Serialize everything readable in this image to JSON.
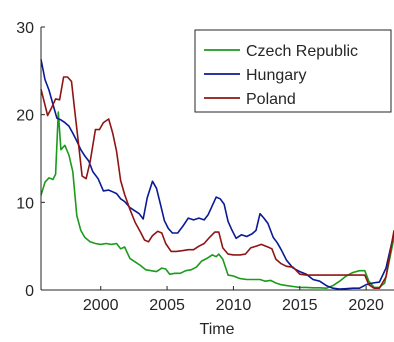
{
  "chart_data": {
    "type": "line",
    "title": "",
    "xlabel": "Time",
    "ylabel": "",
    "xlim": [
      1995.5,
      2022.1
    ],
    "ylim": [
      0,
      30
    ],
    "xticks": [
      2000,
      2005,
      2010,
      2015,
      2020
    ],
    "yticks": [
      0,
      10,
      20,
      30
    ],
    "grid": false,
    "legend_position": "top-right",
    "series": [
      {
        "name": "Czech Republic",
        "color": "#1c9a1c",
        "points": [
          [
            1995.5,
            10.8
          ],
          [
            1995.8,
            12.3
          ],
          [
            1996.1,
            12.8
          ],
          [
            1996.4,
            12.6
          ],
          [
            1996.6,
            13.2
          ],
          [
            1996.8,
            20.3
          ],
          [
            1997.0,
            16.0
          ],
          [
            1997.3,
            16.5
          ],
          [
            1997.6,
            15.4
          ],
          [
            1997.9,
            13.5
          ],
          [
            1998.2,
            8.5
          ],
          [
            1998.5,
            6.8
          ],
          [
            1998.8,
            6.0
          ],
          [
            1999.2,
            5.5
          ],
          [
            1999.6,
            5.3
          ],
          [
            2000.0,
            5.2
          ],
          [
            2000.4,
            5.3
          ],
          [
            2000.8,
            5.2
          ],
          [
            2001.2,
            5.3
          ],
          [
            2001.5,
            4.7
          ],
          [
            2001.8,
            4.9
          ],
          [
            2002.2,
            3.6
          ],
          [
            2002.6,
            3.2
          ],
          [
            2003.0,
            2.8
          ],
          [
            2003.4,
            2.3
          ],
          [
            2003.8,
            2.2
          ],
          [
            2004.2,
            2.1
          ],
          [
            2004.6,
            2.5
          ],
          [
            2004.9,
            2.4
          ],
          [
            2005.2,
            1.8
          ],
          [
            2005.6,
            1.9
          ],
          [
            2006.0,
            1.9
          ],
          [
            2006.4,
            2.2
          ],
          [
            2006.8,
            2.3
          ],
          [
            2007.2,
            2.6
          ],
          [
            2007.6,
            3.3
          ],
          [
            2008.0,
            3.6
          ],
          [
            2008.4,
            4.0
          ],
          [
            2008.7,
            3.8
          ],
          [
            2008.9,
            4.1
          ],
          [
            2009.2,
            3.5
          ],
          [
            2009.4,
            2.6
          ],
          [
            2009.6,
            1.7
          ],
          [
            2010.0,
            1.6
          ],
          [
            2010.5,
            1.3
          ],
          [
            2011.0,
            1.2
          ],
          [
            2011.5,
            1.2
          ],
          [
            2012.0,
            1.2
          ],
          [
            2012.4,
            1.0
          ],
          [
            2012.8,
            1.1
          ],
          [
            2013.2,
            0.8
          ],
          [
            2013.6,
            0.6
          ],
          [
            2014.0,
            0.5
          ],
          [
            2014.5,
            0.4
          ],
          [
            2015.0,
            0.3
          ],
          [
            2015.5,
            0.3
          ],
          [
            2016.0,
            0.25
          ],
          [
            2016.5,
            0.25
          ],
          [
            2017.0,
            0.2
          ],
          [
            2017.5,
            0.5
          ],
          [
            2018.0,
            1.0
          ],
          [
            2018.5,
            1.6
          ],
          [
            2019.0,
            2.0
          ],
          [
            2019.5,
            2.2
          ],
          [
            2019.9,
            2.2
          ],
          [
            2020.2,
            1.0
          ],
          [
            2020.6,
            0.3
          ],
          [
            2021.0,
            0.3
          ],
          [
            2021.4,
            0.8
          ],
          [
            2021.7,
            3.0
          ],
          [
            2022.1,
            6.0
          ]
        ]
      },
      {
        "name": "Hungary",
        "color": "#0a1a94",
        "points": [
          [
            1995.5,
            26.3
          ],
          [
            1995.8,
            24.0
          ],
          [
            1996.1,
            22.8
          ],
          [
            1996.4,
            21.2
          ],
          [
            1996.7,
            19.6
          ],
          [
            1997.0,
            19.4
          ],
          [
            1997.3,
            19.1
          ],
          [
            1997.6,
            18.7
          ],
          [
            1997.9,
            17.9
          ],
          [
            1998.2,
            17.0
          ],
          [
            1998.5,
            16.0
          ],
          [
            1998.8,
            15.3
          ],
          [
            1999.1,
            14.7
          ],
          [
            1999.4,
            13.5
          ],
          [
            1999.8,
            12.7
          ],
          [
            2000.2,
            11.3
          ],
          [
            2000.6,
            11.4
          ],
          [
            2000.9,
            11.2
          ],
          [
            2001.2,
            11.0
          ],
          [
            2001.5,
            10.4
          ],
          [
            2001.8,
            10.1
          ],
          [
            2002.2,
            9.4
          ],
          [
            2002.6,
            9.0
          ],
          [
            2002.9,
            8.7
          ],
          [
            2003.2,
            8.1
          ],
          [
            2003.5,
            10.5
          ],
          [
            2003.9,
            12.4
          ],
          [
            2004.2,
            11.6
          ],
          [
            2004.5,
            9.8
          ],
          [
            2004.8,
            7.9
          ],
          [
            2005.1,
            7.0
          ],
          [
            2005.4,
            6.5
          ],
          [
            2005.8,
            6.5
          ],
          [
            2006.2,
            7.3
          ],
          [
            2006.6,
            8.2
          ],
          [
            2007.0,
            8.0
          ],
          [
            2007.4,
            8.2
          ],
          [
            2007.8,
            8.0
          ],
          [
            2008.1,
            8.6
          ],
          [
            2008.4,
            9.6
          ],
          [
            2008.7,
            10.6
          ],
          [
            2009.0,
            10.4
          ],
          [
            2009.3,
            9.8
          ],
          [
            2009.6,
            7.8
          ],
          [
            2009.9,
            6.8
          ],
          [
            2010.2,
            5.9
          ],
          [
            2010.6,
            6.3
          ],
          [
            2011.0,
            6.1
          ],
          [
            2011.4,
            6.4
          ],
          [
            2011.7,
            6.8
          ],
          [
            2012.0,
            8.7
          ],
          [
            2012.3,
            8.2
          ],
          [
            2012.6,
            7.6
          ],
          [
            2013.0,
            6.0
          ],
          [
            2013.3,
            5.4
          ],
          [
            2013.6,
            4.6
          ],
          [
            2014.0,
            3.4
          ],
          [
            2014.5,
            2.5
          ],
          [
            2015.0,
            2.1
          ],
          [
            2015.5,
            1.8
          ],
          [
            2016.0,
            1.2
          ],
          [
            2016.5,
            1.0
          ],
          [
            2017.0,
            0.5
          ],
          [
            2017.5,
            0.2
          ],
          [
            2018.0,
            0.1
          ],
          [
            2018.5,
            0.15
          ],
          [
            2019.0,
            0.2
          ],
          [
            2019.5,
            0.2
          ],
          [
            2020.0,
            0.6
          ],
          [
            2020.5,
            0.8
          ],
          [
            2021.0,
            0.9
          ],
          [
            2021.5,
            2.5
          ],
          [
            2022.1,
            6.5
          ]
        ]
      },
      {
        "name": "Poland",
        "color": "#8f1515",
        "points": [
          [
            1995.5,
            22.9
          ],
          [
            1995.7,
            21.7
          ],
          [
            1996.0,
            19.9
          ],
          [
            1996.3,
            20.8
          ],
          [
            1996.6,
            21.8
          ],
          [
            1996.9,
            21.7
          ],
          [
            1997.2,
            24.3
          ],
          [
            1997.5,
            24.3
          ],
          [
            1997.8,
            23.8
          ],
          [
            1998.0,
            21.0
          ],
          [
            1998.3,
            17.0
          ],
          [
            1998.6,
            13.0
          ],
          [
            1998.9,
            12.7
          ],
          [
            1999.2,
            14.6
          ],
          [
            1999.6,
            18.3
          ],
          [
            1999.9,
            18.3
          ],
          [
            2000.2,
            19.1
          ],
          [
            2000.6,
            19.5
          ],
          [
            2000.9,
            17.9
          ],
          [
            2001.2,
            15.8
          ],
          [
            2001.5,
            12.5
          ],
          [
            2001.8,
            10.9
          ],
          [
            2002.2,
            9.2
          ],
          [
            2002.6,
            7.7
          ],
          [
            2003.0,
            6.6
          ],
          [
            2003.3,
            5.7
          ],
          [
            2003.6,
            5.5
          ],
          [
            2003.9,
            6.2
          ],
          [
            2004.3,
            6.7
          ],
          [
            2004.6,
            6.5
          ],
          [
            2004.9,
            5.3
          ],
          [
            2005.3,
            4.4
          ],
          [
            2005.7,
            4.4
          ],
          [
            2006.2,
            4.5
          ],
          [
            2006.6,
            4.6
          ],
          [
            2007.0,
            4.6
          ],
          [
            2007.4,
            5.0
          ],
          [
            2007.8,
            5.3
          ],
          [
            2008.2,
            6.0
          ],
          [
            2008.6,
            6.6
          ],
          [
            2008.9,
            6.6
          ],
          [
            2009.2,
            4.8
          ],
          [
            2009.6,
            4.1
          ],
          [
            2010.0,
            4.0
          ],
          [
            2010.5,
            4.0
          ],
          [
            2010.9,
            4.1
          ],
          [
            2011.3,
            4.8
          ],
          [
            2011.7,
            5.0
          ],
          [
            2012.1,
            5.2
          ],
          [
            2012.6,
            4.9
          ],
          [
            2012.9,
            4.7
          ],
          [
            2013.2,
            3.5
          ],
          [
            2013.6,
            3.0
          ],
          [
            2014.0,
            2.7
          ],
          [
            2014.5,
            2.6
          ],
          [
            2015.0,
            1.8
          ],
          [
            2015.5,
            1.7
          ],
          [
            2016.0,
            1.7
          ],
          [
            2016.5,
            1.7
          ],
          [
            2017.0,
            1.7
          ],
          [
            2017.5,
            1.7
          ],
          [
            2018.0,
            1.7
          ],
          [
            2018.5,
            1.7
          ],
          [
            2019.0,
            1.7
          ],
          [
            2019.5,
            1.7
          ],
          [
            2019.9,
            1.7
          ],
          [
            2020.2,
            0.6
          ],
          [
            2020.6,
            0.2
          ],
          [
            2021.0,
            0.2
          ],
          [
            2021.5,
            1.5
          ],
          [
            2022.1,
            6.8
          ]
        ]
      }
    ]
  }
}
